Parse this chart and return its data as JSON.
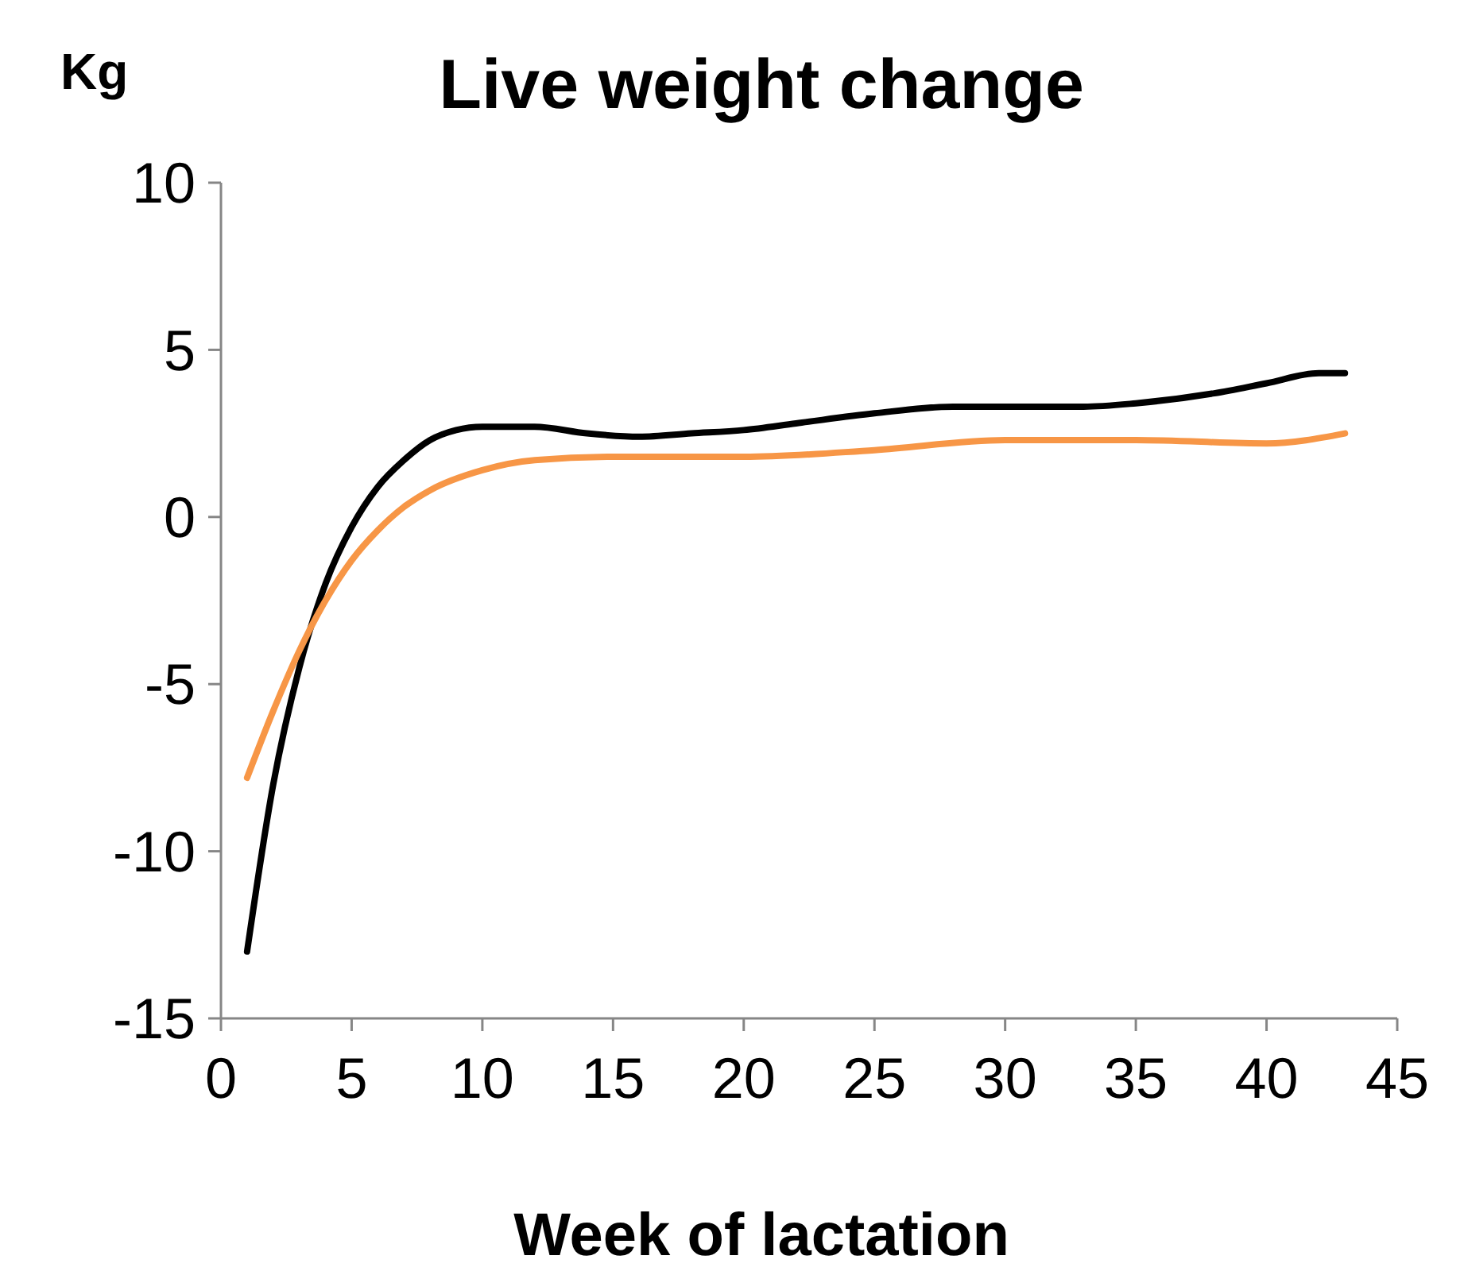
{
  "chart_data": {
    "type": "line",
    "title": "Live weight change",
    "xlabel": "Week of lactation",
    "ylabel": "Kg",
    "xlim": [
      0,
      45
    ],
    "xticks": [
      0,
      5,
      10,
      15,
      20,
      25,
      30,
      35,
      40,
      45
    ],
    "ylim": [
      -15,
      10
    ],
    "yticks": [
      -15,
      -10,
      -5,
      0,
      5,
      10
    ],
    "grid": false,
    "marker": "none",
    "line_style": "solid",
    "series": [
      {
        "color": "#000000",
        "x": [
          1,
          2,
          3,
          4,
          5,
          6,
          7,
          8,
          9,
          10,
          12,
          14,
          16,
          18,
          20,
          22,
          25,
          28,
          30,
          33,
          35,
          38,
          40,
          42,
          43
        ],
        "values": [
          -13,
          -8,
          -4.5,
          -2,
          -0.3,
          0.9,
          1.7,
          2.3,
          2.6,
          2.7,
          2.7,
          2.5,
          2.4,
          2.5,
          2.6,
          2.8,
          3.1,
          3.3,
          3.3,
          3.3,
          3.4,
          3.7,
          4,
          4.3,
          4.3
        ]
      },
      {
        "color": "#f79646",
        "x": [
          1,
          2,
          3,
          4,
          5,
          6,
          7,
          8,
          10,
          12,
          15,
          20,
          25,
          30,
          35,
          40,
          43
        ],
        "values": [
          -7.8,
          -5.8,
          -4,
          -2.5,
          -1.3,
          -0.4,
          0.3,
          0.8,
          1.4,
          1.7,
          1.8,
          1.8,
          2,
          2.3,
          2.3,
          2.2,
          2.5
        ]
      }
    ]
  }
}
